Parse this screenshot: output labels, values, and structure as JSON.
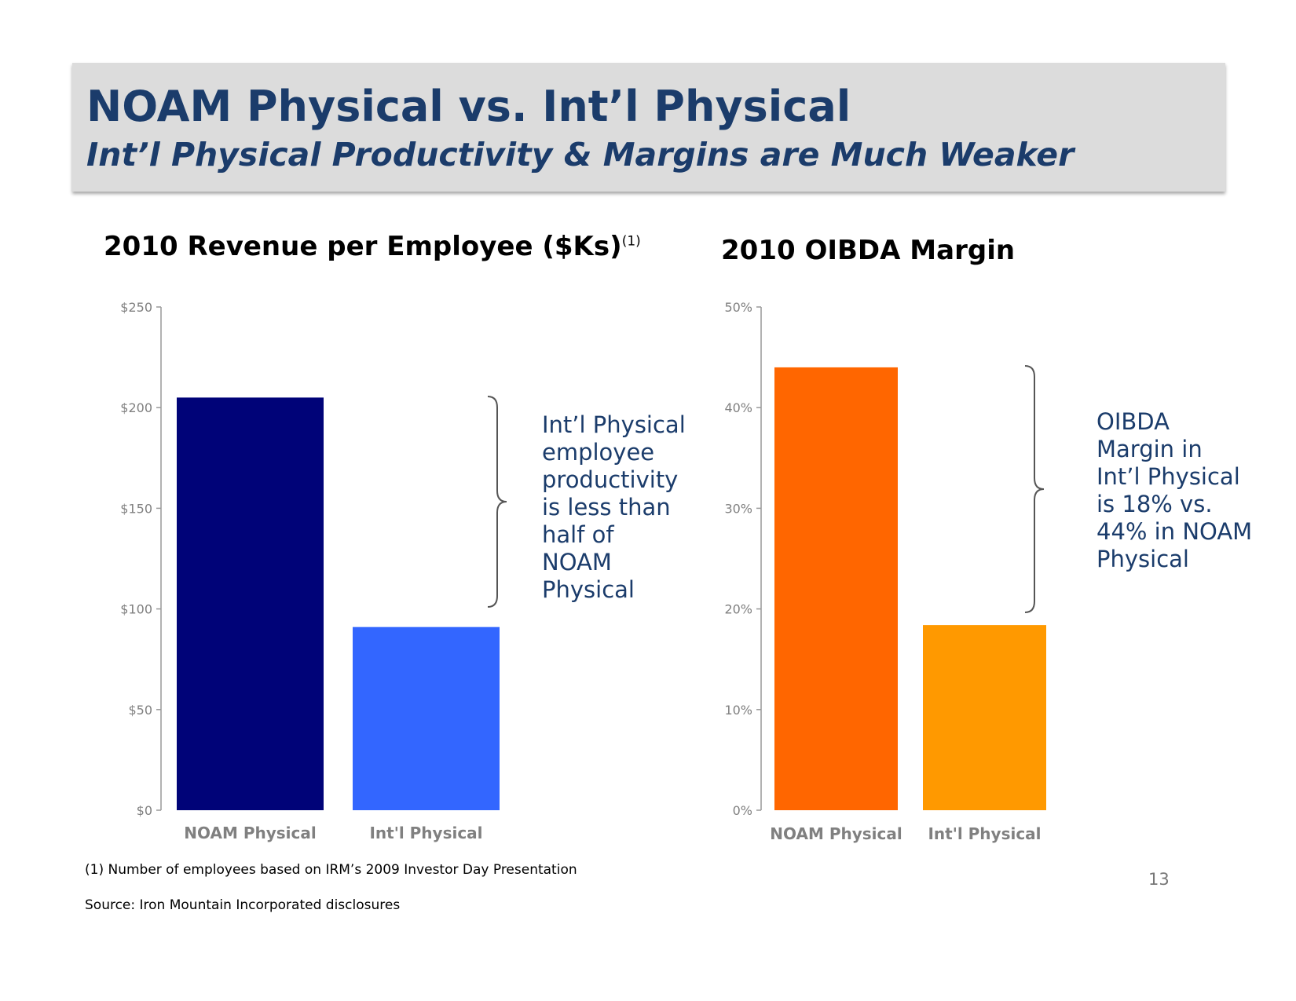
{
  "slide": {
    "title": "NOAM Physical vs. Int’l Physical",
    "subtitle": "Int’l Physical Productivity & Margins are Much Weaker",
    "footnote": "(1)  Number of employees based on IRM’s 2009 Investor Day Presentation",
    "source": "Source:  Iron Mountain Incorporated disclosures",
    "page_number": "13"
  },
  "chart_data": [
    {
      "type": "bar",
      "title": "2010 Revenue per Employee ($Ks)",
      "title_superscript": "(1)",
      "categories": [
        "NOAM Physical",
        "Int'l Physical"
      ],
      "values": [
        205,
        91
      ],
      "colors": [
        "#000378",
        "#3366ff"
      ],
      "ylim": [
        0,
        250
      ],
      "yticks": [
        0,
        50,
        100,
        150,
        200,
        250
      ],
      "ytick_labels": [
        "$0",
        "$50",
        "$100",
        "$150",
        "$200",
        "$250"
      ],
      "xlabel": "",
      "ylabel": "",
      "grid": false,
      "annotation": [
        "Int’l Physical",
        "employee",
        "productivity",
        "is less than",
        "half of",
        "NOAM",
        "Physical"
      ]
    },
    {
      "type": "bar",
      "title": "2010 OIBDA Margin",
      "categories": [
        "NOAM Physical",
        "Int'l Physical"
      ],
      "values": [
        44,
        18.4
      ],
      "colors": [
        "#ff6600",
        "#ff9900"
      ],
      "ylim": [
        0,
        50
      ],
      "yticks": [
        0,
        10,
        20,
        30,
        40,
        50
      ],
      "ytick_labels": [
        "0%",
        "10%",
        "20%",
        "30%",
        "40%",
        "50%"
      ],
      "xlabel": "",
      "ylabel": "",
      "grid": false,
      "annotation": [
        "OIBDA",
        "Margin in",
        "Int’l Physical",
        "is 18% vs.",
        "44% in NOAM",
        "Physical"
      ]
    }
  ]
}
